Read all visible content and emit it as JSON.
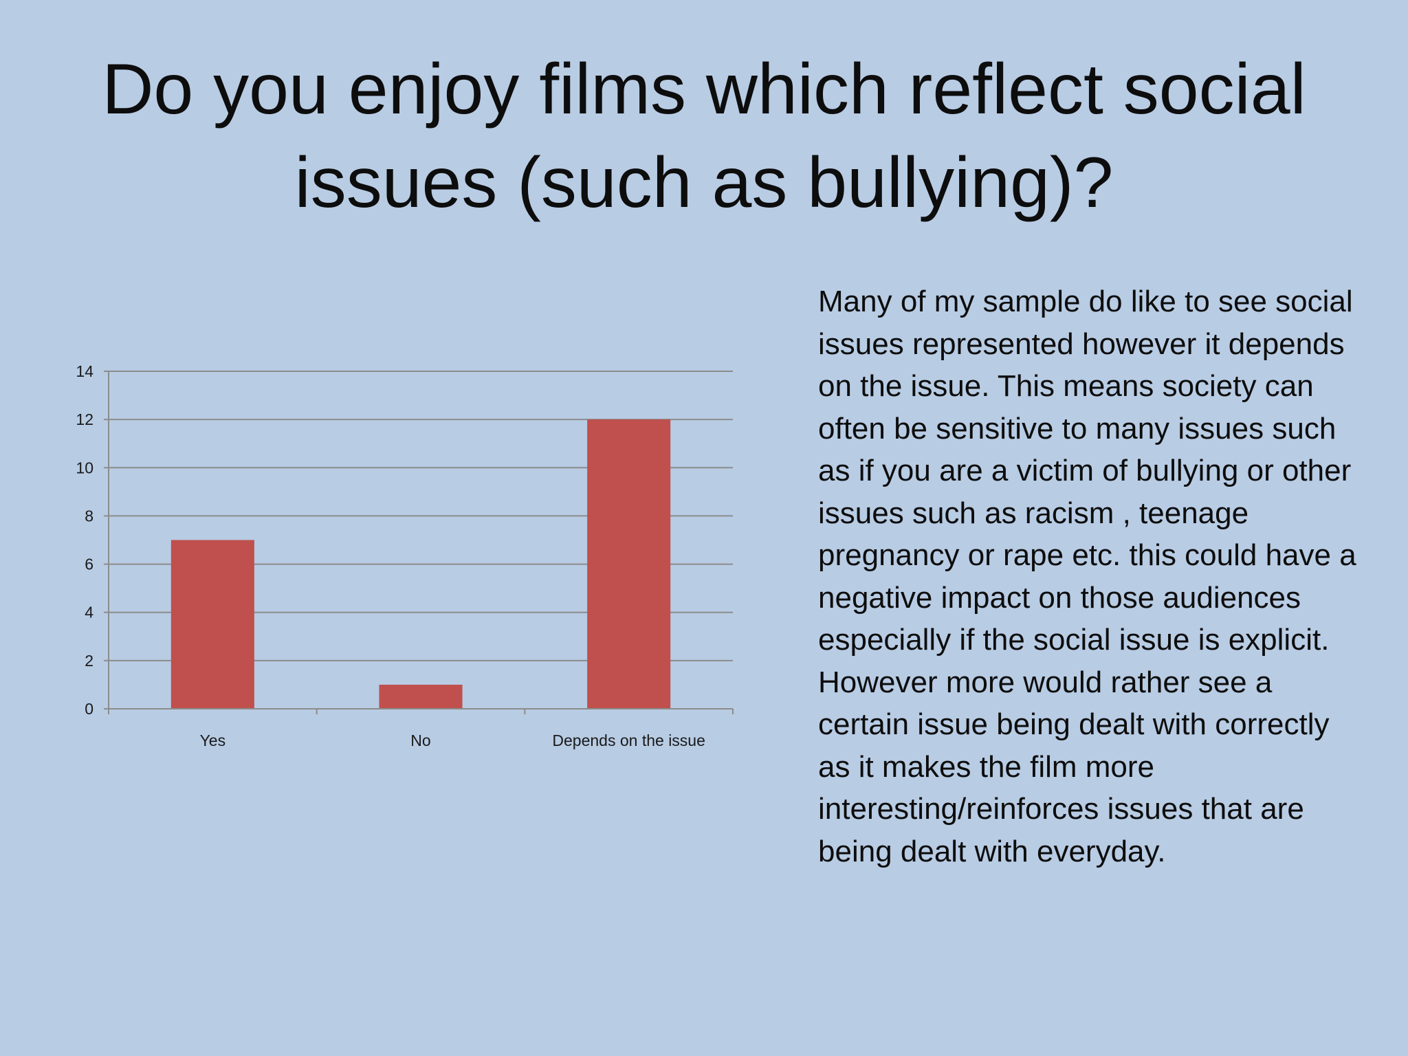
{
  "slide": {
    "title": "Do you enjoy films which reflect social issues (such as bullying)?",
    "body": "Many of my sample do like to see social issues represented however it depends on the issue. This means society can often be sensitive to many issues such as if you are a victim of bullying or other issues such as racism , teenage pregnancy or rape etc. this could have a negative impact on those audiences especially if the social issue is explicit. However more would rather see a certain issue being dealt with correctly as it makes the film more interesting/reinforces issues that are being dealt with everyday."
  },
  "colors": {
    "background": "#b8cce4",
    "bar": "#c0504d",
    "gridline": "#8c8c8c"
  },
  "chart_data": {
    "type": "bar",
    "categories": [
      "Yes",
      "No",
      "Depends on the issue"
    ],
    "values": [
      7,
      1,
      12
    ],
    "ylim": [
      0,
      14
    ],
    "yticks": [
      "0",
      "2",
      "4",
      "6",
      "8",
      "10",
      "12",
      "14"
    ],
    "grid": true,
    "legend": "none"
  }
}
